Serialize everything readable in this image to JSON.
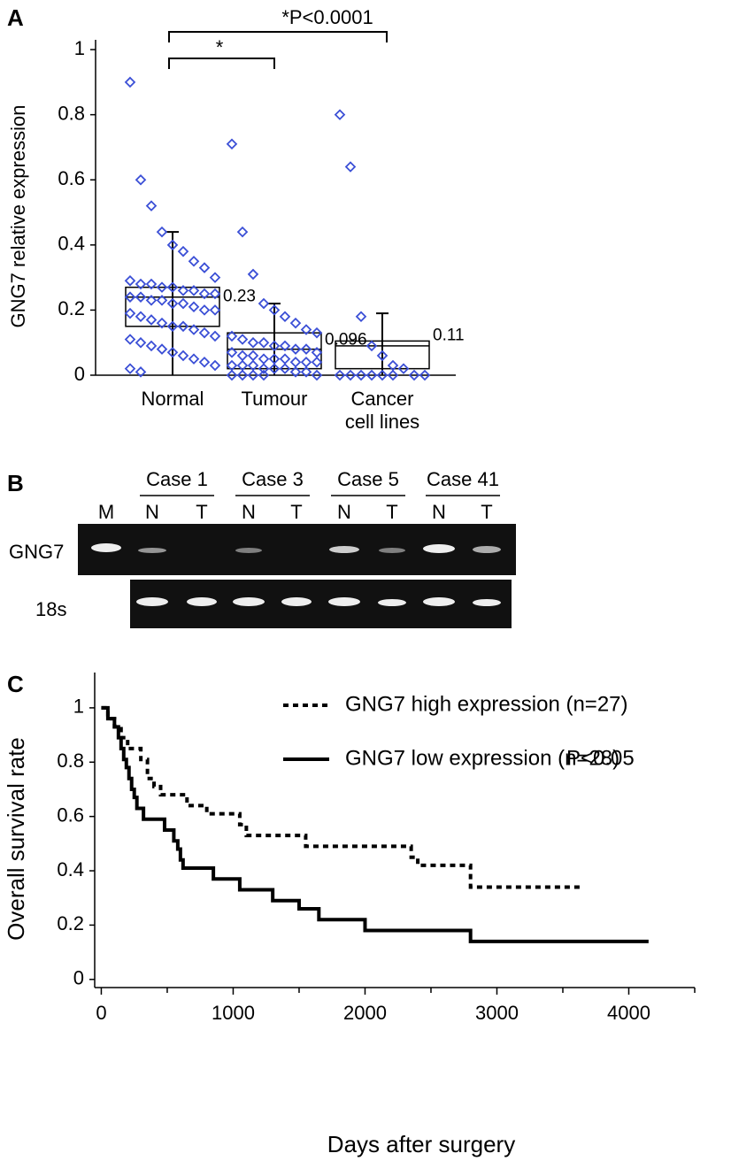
{
  "panel_labels": [
    "A",
    "B",
    "C"
  ],
  "gel": {
    "cases": [
      "Case 1",
      "Case 3",
      "Case 5",
      "Case 41"
    ],
    "lanes": [
      "M",
      "N",
      "T",
      "N",
      "T",
      "N",
      "T",
      "N",
      "T"
    ],
    "rows": [
      "GNG7",
      "18s"
    ]
  },
  "chart_data": [
    {
      "type": "box",
      "y_label": "GNG7 relative expression",
      "categories": [
        "Normal",
        "Tumour",
        "Cancer cell lines"
      ],
      "boxes": [
        {
          "low": 0,
          "q1": 0.15,
          "median": 0.24,
          "q3": 0.27,
          "high": 0.44
        },
        {
          "low": 0,
          "q1": 0.02,
          "median": 0.08,
          "q3": 0.13,
          "high": 0.22
        },
        {
          "low": 0,
          "q1": 0.02,
          "median": 0.09,
          "q3": 0.105,
          "high": 0.19
        }
      ],
      "means": [
        0.23,
        0.096,
        0.11
      ],
      "points": [
        [
          0.9,
          0.6,
          0.52,
          0.44,
          0.4,
          0.38,
          0.35,
          0.33,
          0.3,
          0.29,
          0.28,
          0.28,
          0.27,
          0.27,
          0.26,
          0.26,
          0.25,
          0.25,
          0.24,
          0.24,
          0.23,
          0.23,
          0.22,
          0.22,
          0.21,
          0.2,
          0.2,
          0.19,
          0.18,
          0.17,
          0.16,
          0.15,
          0.15,
          0.14,
          0.13,
          0.12,
          0.11,
          0.1,
          0.09,
          0.08,
          0.07,
          0.06,
          0.05,
          0.04,
          0.03,
          0.02,
          0.01
        ],
        [
          0.71,
          0.44,
          0.31,
          0.22,
          0.2,
          0.18,
          0.16,
          0.14,
          0.13,
          0.12,
          0.11,
          0.1,
          0.1,
          0.09,
          0.09,
          0.08,
          0.08,
          0.07,
          0.07,
          0.06,
          0.06,
          0.05,
          0.05,
          0.05,
          0.04,
          0.04,
          0.04,
          0.03,
          0.03,
          0.03,
          0.02,
          0.02,
          0.02,
          0.01,
          0.01,
          0,
          0,
          0,
          0,
          0
        ],
        [
          0.8,
          0.64,
          0.18,
          0.09,
          0.06,
          0.03,
          0.02,
          0,
          0,
          0,
          0,
          0,
          0,
          0,
          0
        ]
      ],
      "point_color": "#3b4fd6",
      "ylim": [
        0,
        1.03
      ],
      "yticks": [
        0,
        0.2,
        0.4,
        0.6,
        0.8,
        1
      ],
      "annotations": [
        "*",
        "*P<0.0001"
      ]
    },
    {
      "type": "line",
      "step": true,
      "x_label": "Days after surgery",
      "y_label": "Overall survival rate",
      "xlim": [
        -50,
        4500
      ],
      "xticks": [
        0,
        1000,
        2000,
        3000,
        4000
      ],
      "xminorticks": [
        500,
        1500,
        2500,
        3500,
        4500
      ],
      "ylim": [
        -0.03,
        1.13
      ],
      "yticks": [
        0,
        0.2,
        0.4,
        0.6,
        0.8,
        1
      ],
      "annotation": "P<0.05",
      "series": [
        {
          "name": "GNG7 high expression (n=27)",
          "color": "#000000",
          "style": "dotted",
          "x": [
            0,
            50,
            100,
            150,
            200,
            300,
            350,
            400,
            450,
            650,
            800,
            1050,
            1100,
            1550,
            2350,
            2400,
            2800,
            3650
          ],
          "values": [
            1,
            0.96,
            0.93,
            0.89,
            0.85,
            0.81,
            0.74,
            0.71,
            0.68,
            0.64,
            0.61,
            0.57,
            0.53,
            0.49,
            0.45,
            0.42,
            0.34,
            0.34
          ]
        },
        {
          "name": "GNG7 low expression (n=28)",
          "color": "#000000",
          "style": "solid",
          "x": [
            0,
            50,
            100,
            130,
            150,
            170,
            190,
            210,
            230,
            250,
            270,
            320,
            480,
            550,
            580,
            600,
            620,
            850,
            1050,
            1300,
            1500,
            1650,
            2000,
            2800,
            4150
          ],
          "values": [
            1,
            0.96,
            0.93,
            0.89,
            0.85,
            0.81,
            0.78,
            0.74,
            0.7,
            0.67,
            0.63,
            0.59,
            0.55,
            0.51,
            0.48,
            0.44,
            0.41,
            0.37,
            0.33,
            0.29,
            0.26,
            0.22,
            0.18,
            0.14,
            0.14
          ]
        }
      ]
    }
  ]
}
